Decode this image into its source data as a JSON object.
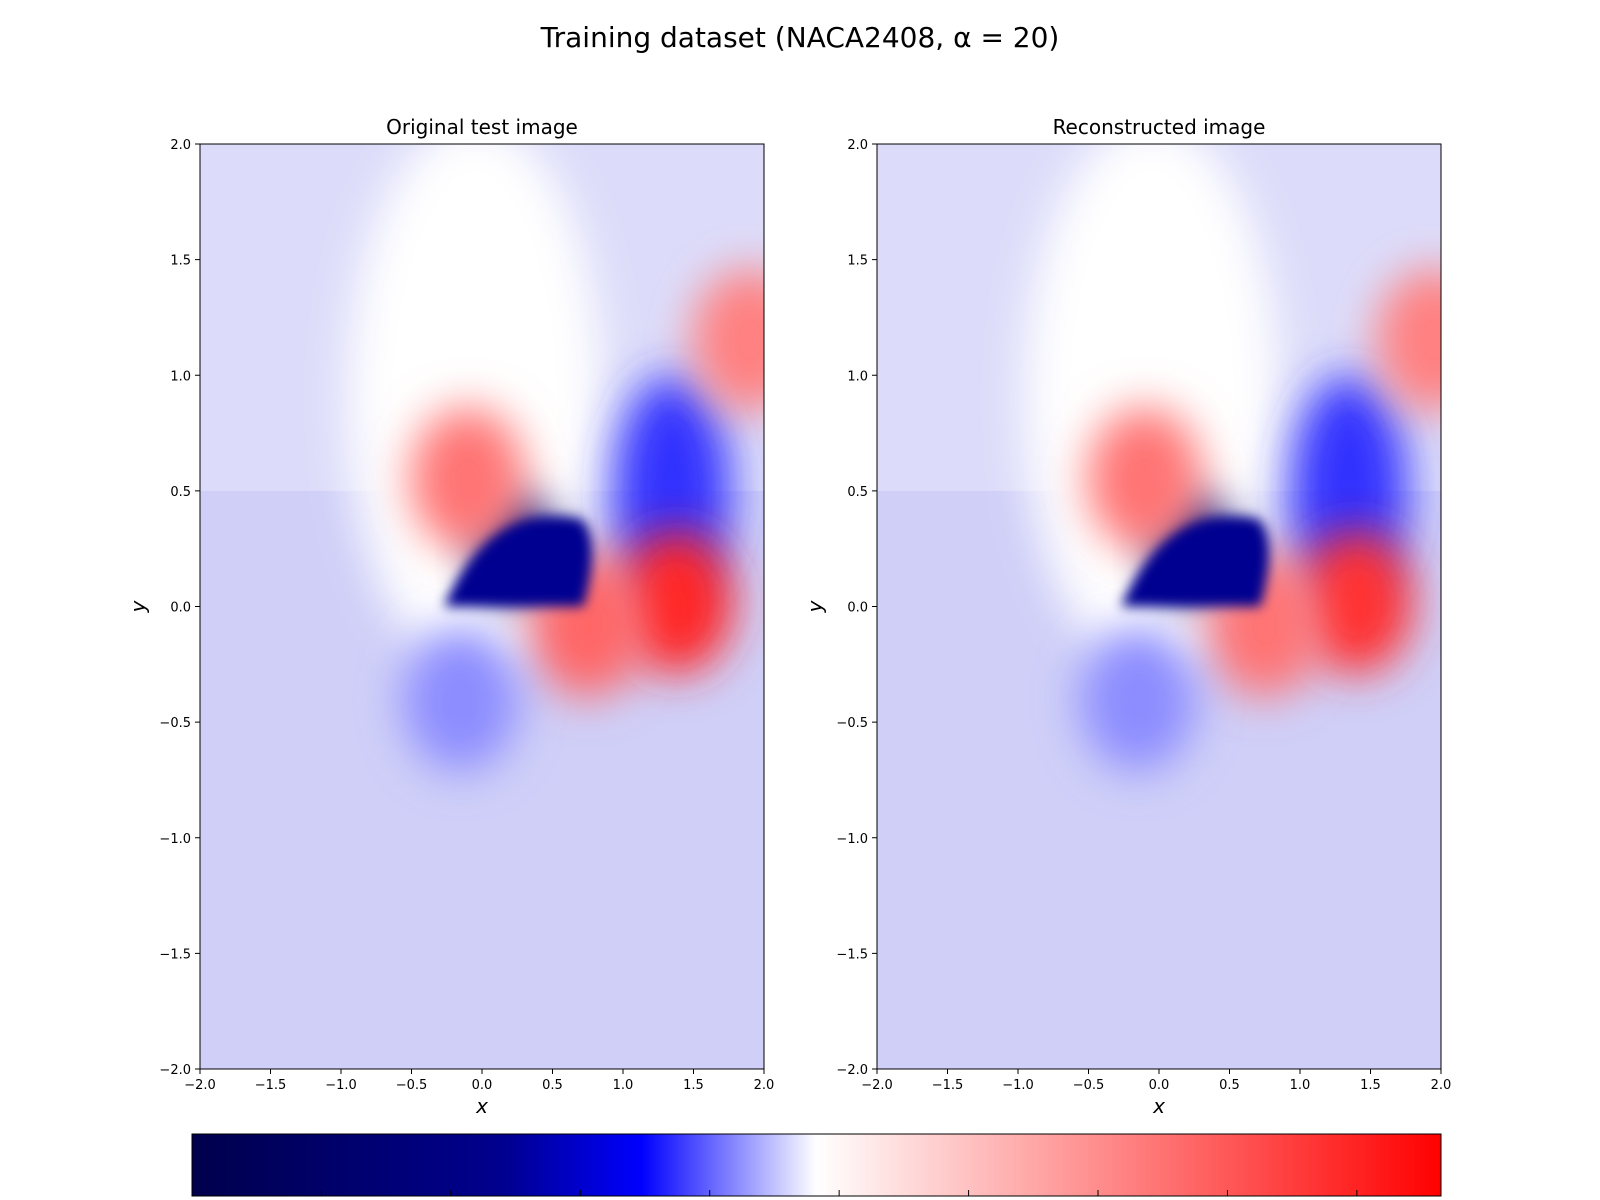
{
  "chart_data": [
    {
      "type": "heatmap",
      "title": "Original test image",
      "xlabel": "x",
      "ylabel": "y",
      "xlim": [
        -2.0,
        2.0
      ],
      "ylim": [
        -2.0,
        2.0
      ],
      "x_ticks": [
        "−2.0",
        "−1.5",
        "−1.0",
        "−0.5",
        "0.0",
        "0.5",
        "1.0",
        "1.5",
        "2.0"
      ],
      "y_ticks": [
        "−2.0",
        "−1.5",
        "−1.0",
        "−0.5",
        "0.0",
        "0.5",
        "1.0",
        "1.5",
        "2.0"
      ],
      "colormap": "seismic",
      "field_features": [
        {
          "x": 0.25,
          "y": 0.25,
          "level": -1.0
        },
        {
          "x": -0.1,
          "y": 0.55,
          "level": 0.55
        },
        {
          "x": 1.35,
          "y": 0.5,
          "level": -0.8
        },
        {
          "x": 1.38,
          "y": 0.02,
          "level": 0.85
        },
        {
          "x": 0.75,
          "y": -0.08,
          "level": 0.6
        },
        {
          "x": -0.15,
          "y": -0.4,
          "level": -0.45
        },
        {
          "x": 1.9,
          "y": 1.15,
          "level": 0.5
        }
      ]
    },
    {
      "type": "heatmap",
      "title": "Reconstructed image",
      "xlabel": "x",
      "ylabel": "y",
      "xlim": [
        -2.0,
        2.0
      ],
      "ylim": [
        -2.0,
        2.0
      ],
      "x_ticks": [
        "−2.0",
        "−1.5",
        "−1.0",
        "−0.5",
        "0.0",
        "0.5",
        "1.0",
        "1.5",
        "2.0"
      ],
      "y_ticks": [
        "−2.0",
        "−1.5",
        "−1.0",
        "−0.5",
        "0.0",
        "0.5",
        "1.0",
        "1.5",
        "2.0"
      ],
      "colormap": "seismic",
      "field_features": [
        {
          "x": 0.25,
          "y": 0.25,
          "level": -1.0
        },
        {
          "x": -0.1,
          "y": 0.55,
          "level": 0.55
        },
        {
          "x": 1.35,
          "y": 0.5,
          "level": -0.8
        },
        {
          "x": 1.4,
          "y": 0.02,
          "level": 0.8
        },
        {
          "x": 0.75,
          "y": -0.08,
          "level": 0.55
        },
        {
          "x": -0.15,
          "y": -0.4,
          "level": -0.45
        },
        {
          "x": 1.95,
          "y": 1.15,
          "level": 0.5
        }
      ]
    }
  ],
  "figure": {
    "suptitle": "Training dataset (NACA2408, α = 20)"
  },
  "colors": {
    "low": "#00004c",
    "mid_low": "#0000ff",
    "mid": "#ffffff",
    "high": "#ff0000"
  }
}
